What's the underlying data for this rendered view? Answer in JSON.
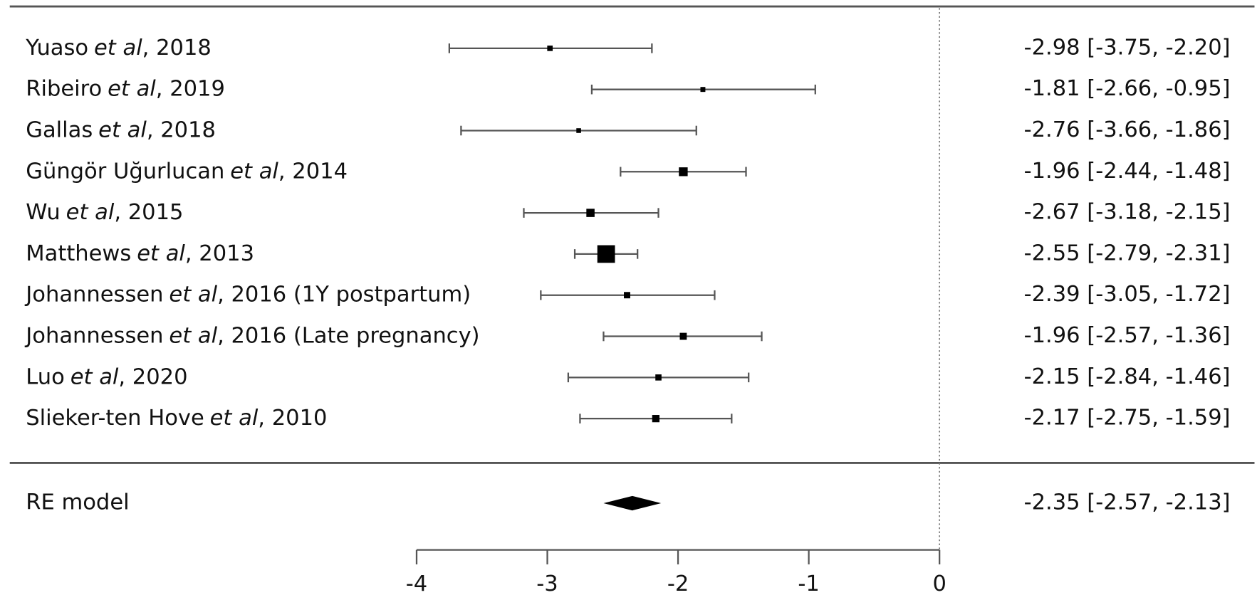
{
  "chart_data": {
    "type": "forest",
    "studies": [
      {
        "name": "Yuaso",
        "em": "et al",
        "rest": ", 2018"
      },
      {
        "name": "Ribeiro",
        "em": "et al",
        "rest": ", 2019"
      },
      {
        "name": "Gallas",
        "em": "et al",
        "rest": ", 2018"
      },
      {
        "name": "Güngör Uğurlucan",
        "em": "et al",
        "rest": ", 2014"
      },
      {
        "name": "Wu",
        "em": "et al",
        "rest": ", 2015"
      },
      {
        "name": "Matthews",
        "em": "et al",
        "rest": ", 2013"
      },
      {
        "name": "Johannessen",
        "em": "et al",
        "rest": ", 2016 (1Y postpartum)"
      },
      {
        "name": "Johannessen",
        "em": "et al",
        "rest": ", 2016 (Late pregnancy)"
      },
      {
        "name": "Luo",
        "em": "et al",
        "rest": ", 2020"
      },
      {
        "name": "Slieker-ten Hove",
        "em": "et al",
        "rest": ", 2010"
      }
    ],
    "values": [
      -2.98,
      -1.81,
      -2.76,
      -1.96,
      -2.67,
      -2.55,
      -2.39,
      -1.96,
      -2.15,
      -2.17
    ],
    "lower": [
      -3.75,
      -2.66,
      -3.66,
      -2.44,
      -3.18,
      -2.79,
      -3.05,
      -2.57,
      -2.84,
      -2.75
    ],
    "upper": [
      -2.2,
      -0.95,
      -1.86,
      -1.48,
      -2.15,
      -2.31,
      -1.72,
      -1.36,
      -1.46,
      -1.59
    ],
    "value_labels": [
      "-2.98 [-3.75, -2.20]",
      "-1.81 [-2.66, -0.95]",
      "-2.76 [-3.66, -1.86]",
      "-1.96 [-2.44, -1.48]",
      "-2.67 [-3.18, -2.15]",
      "-2.55 [-2.79, -2.31]",
      "-2.39 [-3.05, -1.72]",
      "-1.96 [-2.57, -1.36]",
      "-2.15 [-2.84, -1.46]",
      "-2.17 [-2.75, -1.59]"
    ],
    "summary": {
      "label": "RE model",
      "value": -2.35,
      "lower": -2.57,
      "upper": -2.13,
      "value_label": "-2.35 [-2.57, -2.13]"
    },
    "xlim": [
      -4,
      0
    ],
    "xticks": [
      -4,
      -3,
      -2,
      -1,
      0
    ],
    "reference_line": 0
  }
}
